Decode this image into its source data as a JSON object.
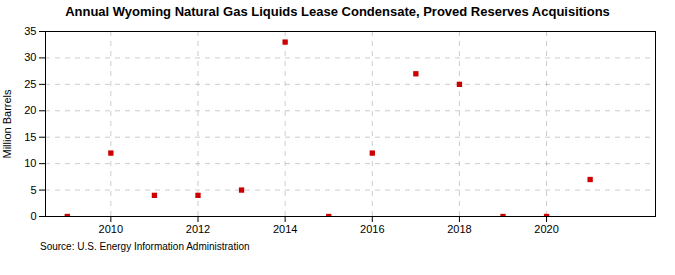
{
  "chart_data": {
    "type": "scatter",
    "title": "Annual Wyoming Natural Gas Liquids Lease Condensate, Proved Reserves Acquisitions",
    "ylabel": "Million Barrels",
    "source": "Source: U.S. Energy Information Administration",
    "x": [
      2009,
      2010,
      2011,
      2012,
      2013,
      2014,
      2015,
      2016,
      2017,
      2018,
      2019,
      2020,
      2021
    ],
    "values": [
      0,
      12,
      4,
      4,
      5,
      33,
      0,
      12,
      27,
      25,
      0,
      0,
      7
    ],
    "color": "#cc0000",
    "marker": "square",
    "xlim": [
      2008.5,
      2022.5
    ],
    "ylim": [
      0,
      35
    ],
    "xticks": [
      2010,
      2012,
      2014,
      2016,
      2018,
      2020
    ],
    "yticks": [
      0,
      5,
      10,
      15,
      20,
      25,
      30,
      35
    ],
    "grid": true
  }
}
